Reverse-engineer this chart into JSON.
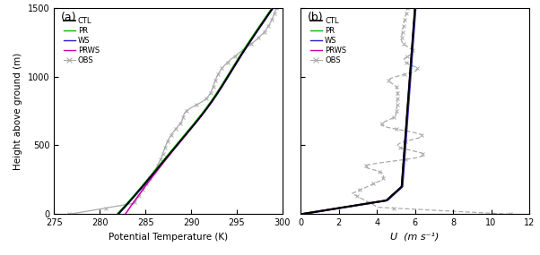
{
  "panel_a_label": "(a)",
  "panel_b_label": "(b)",
  "xlabel_a": "Potential Temperature (K)",
  "xlabel_b": "U  (m s⁻¹)",
  "ylabel": "Height above ground (m)",
  "ylim": [
    0,
    1500
  ],
  "xlim_a": [
    275,
    300
  ],
  "xlim_b": [
    0,
    12
  ],
  "xticks_a": [
    275,
    280,
    285,
    290,
    295,
    300
  ],
  "xticks_b": [
    0,
    2,
    4,
    6,
    8,
    10,
    12
  ],
  "yticks": [
    0,
    500,
    1000,
    1500
  ],
  "legend_labels": [
    "CTL",
    "PR",
    "WS",
    "PRWS",
    "OBS"
  ],
  "colors": {
    "CTL": "#000000",
    "PR": "#00bb00",
    "WS": "#2222cc",
    "PRWS": "#cc00aa",
    "OBS": "#aaaaaa"
  },
  "background_color": "#ffffff"
}
